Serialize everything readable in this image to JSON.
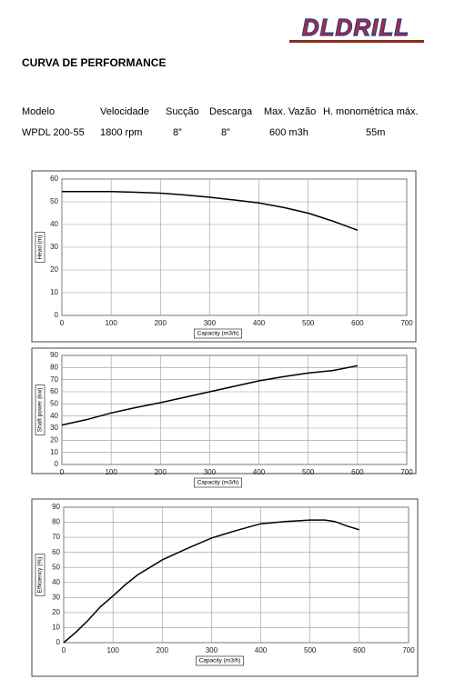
{
  "logo": "DLDRILL",
  "title": "CURVA DE PERFORMANCE",
  "table": {
    "header": [
      "Modelo",
      "Velocidade",
      "Sucção",
      "Descarga",
      "Max. Vazão",
      "H. monométrica máx."
    ],
    "rows": [
      [
        "WPDL 200-55",
        "1800 rpm",
        "8”",
        "8”",
        "600 m3h",
        "55m"
      ]
    ]
  },
  "chart_data": [
    {
      "type": "line",
      "ylabel": "Head (m)",
      "xlabel": "Capacity (m3/h)",
      "color": "#000000",
      "grid": true,
      "x": [
        0,
        50,
        100,
        150,
        200,
        250,
        300,
        350,
        400,
        450,
        500,
        550,
        600
      ],
      "values": [
        54.5,
        54.5,
        54.5,
        54.2,
        53.8,
        53,
        52,
        50.8,
        49.5,
        47.5,
        45,
        41.5,
        37.5
      ],
      "xlim": [
        0,
        700
      ],
      "xticks": [
        0,
        100,
        200,
        300,
        400,
        500,
        600,
        700
      ],
      "ylim": [
        0,
        60
      ],
      "yticks": [
        0,
        10,
        20,
        30,
        40,
        50,
        60
      ]
    },
    {
      "type": "line",
      "ylabel": "Shaft power (kw)",
      "xlabel": "Capacity (m3/h)",
      "color": "#000000",
      "grid": true,
      "x": [
        0,
        50,
        100,
        150,
        200,
        250,
        300,
        350,
        400,
        450,
        500,
        550,
        600
      ],
      "values": [
        32.5,
        37,
        42.5,
        47,
        51,
        55.5,
        60,
        64.5,
        69,
        72.5,
        75.5,
        77.5,
        81.5
      ],
      "xlim": [
        0,
        700
      ],
      "xticks": [
        0,
        100,
        200,
        300,
        400,
        500,
        600,
        700
      ],
      "ylim": [
        0,
        90
      ],
      "yticks": [
        0,
        10,
        20,
        30,
        40,
        50,
        60,
        70,
        80,
        90
      ]
    },
    {
      "type": "line",
      "ylabel": "Efficiency (%)",
      "xlabel": "Capacity (m3/h)",
      "color": "#000000",
      "grid": true,
      "x": [
        0,
        25,
        50,
        75,
        100,
        125,
        150,
        200,
        250,
        300,
        350,
        400,
        450,
        500,
        530,
        550,
        575,
        600
      ],
      "values": [
        0,
        7,
        15,
        24,
        31,
        38.5,
        45,
        55,
        62.5,
        69.5,
        74.5,
        79,
        80.5,
        81.5,
        81.5,
        80.5,
        77.5,
        75
      ],
      "xlim": [
        0,
        700
      ],
      "xticks": [
        0,
        100,
        200,
        300,
        400,
        500,
        600,
        700
      ],
      "ylim": [
        0,
        90
      ],
      "yticks": [
        0,
        10,
        20,
        30,
        40,
        50,
        60,
        70,
        80,
        90
      ]
    }
  ]
}
